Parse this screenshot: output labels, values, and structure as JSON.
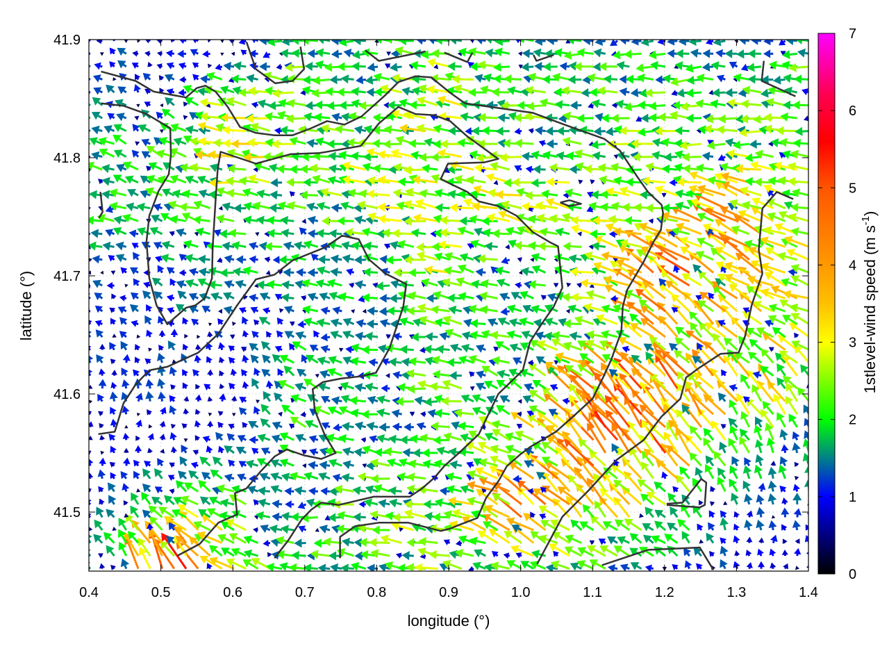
{
  "chart_data": {
    "type": "quiver",
    "title": "",
    "xlabel": "longitude (°)",
    "ylabel": "latitude (°)",
    "colorbar_label_main": "1stlevel-wind speed (m s",
    "colorbar_label_sup": "-1",
    "colorbar_label_end": ")",
    "xlim": [
      0.4,
      1.4
    ],
    "ylim": [
      41.45,
      41.9
    ],
    "clim": [
      0,
      7
    ],
    "xticks": [
      "0.4",
      "0.5",
      "0.6",
      "0.7",
      "0.8",
      "0.9",
      "1.0",
      "1.1",
      "1.2",
      "1.3",
      "1.4"
    ],
    "yticks": [
      "41.5",
      "41.6",
      "41.7",
      "41.8",
      "41.9"
    ],
    "cticks": [
      "0",
      "1",
      "2",
      "3",
      "4",
      "5",
      "6",
      "7"
    ],
    "grid": true,
    "palette": [
      [
        0,
        "#000000"
      ],
      [
        0.5,
        "#000080"
      ],
      [
        1,
        "#0000ff"
      ],
      [
        1.5,
        "#00808a"
      ],
      [
        2,
        "#00ff00"
      ],
      [
        2.5,
        "#80ff00"
      ],
      [
        3,
        "#ffff00"
      ],
      [
        3.5,
        "#ffc000"
      ],
      [
        4,
        "#ff9900"
      ],
      [
        5,
        "#ff5500"
      ],
      [
        5.6,
        "#ff0000"
      ],
      [
        6.2,
        "#ff0050"
      ],
      [
        7,
        "#ff00ff"
      ]
    ],
    "field": {
      "lon": [
        0.4,
        0.5,
        0.6,
        0.7,
        0.8,
        0.9,
        1.0,
        1.1,
        1.2,
        1.3,
        1.4
      ],
      "lat": [
        41.9,
        41.85,
        41.8,
        41.75,
        41.7,
        41.65,
        41.6,
        41.55,
        41.5,
        41.45
      ],
      "speed": [
        [
          1.2,
          0.8,
          0.7,
          1.8,
          1.5,
          2.0,
          1.5,
          1.8,
          1.5,
          1.2,
          1.5
        ],
        [
          1.3,
          1.0,
          2.3,
          2.2,
          1.8,
          2.8,
          2.0,
          2.0,
          2.0,
          2.0,
          2.5
        ],
        [
          1.8,
          1.8,
          2.9,
          2.2,
          2.3,
          2.6,
          2.2,
          2.2,
          2.2,
          2.2,
          2.2
        ],
        [
          1.8,
          1.7,
          1.8,
          1.8,
          2.3,
          2.5,
          2.6,
          2.3,
          2.5,
          3.8,
          2.5
        ],
        [
          1.0,
          1.2,
          1.6,
          1.6,
          1.5,
          2.7,
          1.2,
          2.3,
          4.0,
          3.5,
          2.5
        ],
        [
          1.0,
          1.2,
          0.9,
          1.5,
          1.6,
          1.8,
          2.0,
          1.8,
          3.5,
          3.0,
          2.8
        ],
        [
          1.0,
          1.0,
          0.8,
          1.9,
          1.5,
          2.2,
          1.5,
          4.0,
          4.2,
          3.0,
          2.5
        ],
        [
          0.8,
          0.8,
          1.2,
          1.7,
          1.8,
          1.8,
          2.8,
          4.0,
          4.0,
          2.0,
          1.5
        ],
        [
          0.9,
          2.0,
          2.2,
          1.5,
          2.5,
          2.0,
          3.8,
          3.2,
          2.0,
          1.2,
          1.0
        ],
        [
          1.5,
          5.0,
          3.0,
          1.8,
          2.0,
          2.2,
          2.0,
          1.8,
          1.3,
          1.0,
          0.8
        ]
      ],
      "direction_deg": [
        [
          150,
          140,
          180,
          175,
          180,
          175,
          175,
          180,
          180,
          180,
          180
        ],
        [
          150,
          140,
          170,
          175,
          175,
          170,
          175,
          175,
          180,
          180,
          175
        ],
        [
          165,
          150,
          170,
          172,
          170,
          172,
          175,
          175,
          175,
          175,
          175
        ],
        [
          170,
          160,
          170,
          170,
          170,
          170,
          170,
          170,
          170,
          150,
          165
        ],
        [
          165,
          150,
          175,
          170,
          175,
          170,
          160,
          170,
          140,
          145,
          165
        ],
        [
          130,
          120,
          140,
          150,
          170,
          170,
          160,
          170,
          135,
          140,
          150
        ],
        [
          110,
          100,
          110,
          150,
          170,
          175,
          150,
          130,
          130,
          130,
          130
        ],
        [
          120,
          100,
          150,
          160,
          170,
          170,
          155,
          130,
          130,
          120,
          110
        ],
        [
          125,
          140,
          160,
          175,
          170,
          170,
          145,
          130,
          140,
          110,
          90
        ],
        [
          130,
          110,
          145,
          170,
          170,
          165,
          160,
          165,
          150,
          100,
          90
        ]
      ]
    },
    "coastlines": [
      [
        [
          0.417,
          41.846
        ],
        [
          0.448,
          41.844
        ],
        [
          0.48,
          41.837
        ],
        [
          0.513,
          41.825
        ],
        [
          0.514,
          41.802
        ],
        [
          0.511,
          41.786
        ],
        [
          0.497,
          41.772
        ],
        [
          0.484,
          41.751
        ],
        [
          0.48,
          41.729
        ],
        [
          0.484,
          41.698
        ],
        [
          0.494,
          41.675
        ],
        [
          0.509,
          41.659
        ],
        [
          0.535,
          41.673
        ],
        [
          0.548,
          41.675
        ],
        [
          0.561,
          41.681
        ],
        [
          0.571,
          41.698
        ],
        [
          0.572,
          41.724
        ],
        [
          0.576,
          41.763
        ],
        [
          0.579,
          41.79
        ],
        [
          0.583,
          41.805
        ],
        [
          0.632,
          41.795
        ],
        [
          0.68,
          41.803
        ],
        [
          0.721,
          41.804
        ],
        [
          0.778,
          41.81
        ],
        [
          0.803,
          41.829
        ],
        [
          0.83,
          41.843
        ],
        [
          0.854,
          41.837
        ],
        [
          0.88,
          41.836
        ],
        [
          0.902,
          41.831
        ],
        [
          0.926,
          41.818
        ],
        [
          0.969,
          41.799
        ],
        [
          0.949,
          41.796
        ],
        [
          0.899,
          41.795
        ],
        [
          0.889,
          41.782
        ],
        [
          0.902,
          41.778
        ],
        [
          0.926,
          41.771
        ],
        [
          0.942,
          41.763
        ],
        [
          0.969,
          41.759
        ],
        [
          0.994,
          41.751
        ],
        [
          1.017,
          41.737
        ],
        [
          1.042,
          41.728
        ],
        [
          1.052,
          41.725
        ],
        [
          1.058,
          41.69
        ],
        [
          1.046,
          41.674
        ],
        [
          1.029,
          41.659
        ],
        [
          1.013,
          41.644
        ],
        [
          1.003,
          41.62
        ],
        [
          0.969,
          41.6
        ],
        [
          0.942,
          41.566
        ],
        [
          0.916,
          41.551
        ],
        [
          0.894,
          41.539
        ],
        [
          0.88,
          41.529
        ],
        [
          0.863,
          41.52
        ],
        [
          0.846,
          41.513
        ],
        [
          0.796,
          41.513
        ],
        [
          0.747,
          41.506
        ],
        [
          0.723,
          41.508
        ],
        [
          0.709,
          41.502
        ],
        [
          0.696,
          41.494
        ],
        [
          0.677,
          41.476
        ],
        [
          0.658,
          41.461
        ]
      ],
      [
        [
          0.413,
          41.566
        ],
        [
          0.436,
          41.568
        ],
        [
          0.448,
          41.592
        ],
        [
          0.465,
          41.608
        ],
        [
          0.484,
          41.62
        ],
        [
          0.509,
          41.623
        ],
        [
          0.552,
          41.635
        ],
        [
          0.58,
          41.651
        ],
        [
          0.606,
          41.675
        ],
        [
          0.632,
          41.697
        ],
        [
          0.658,
          41.701
        ],
        [
          0.683,
          41.713
        ],
        [
          0.728,
          41.724
        ],
        [
          0.752,
          41.734
        ],
        [
          0.775,
          41.731
        ],
        [
          0.789,
          41.714
        ],
        [
          0.812,
          41.702
        ],
        [
          0.841,
          41.693
        ],
        [
          0.837,
          41.674
        ],
        [
          0.818,
          41.639
        ],
        [
          0.799,
          41.618
        ],
        [
          0.779,
          41.615
        ],
        [
          0.75,
          41.613
        ],
        [
          0.725,
          41.61
        ],
        [
          0.711,
          41.604
        ],
        [
          0.714,
          41.586
        ],
        [
          0.728,
          41.565
        ],
        [
          0.743,
          41.55
        ],
        [
          0.723,
          41.545
        ],
        [
          0.699,
          41.548
        ],
        [
          0.675,
          41.553
        ],
        [
          0.658,
          41.547
        ],
        [
          0.638,
          41.534
        ],
        [
          0.619,
          41.52
        ],
        [
          0.603,
          41.516
        ],
        [
          0.606,
          41.498
        ],
        [
          0.58,
          41.491
        ],
        [
          0.567,
          41.482
        ],
        [
          0.554,
          41.473
        ],
        [
          0.523,
          41.463
        ]
      ],
      [
        [
          0.417,
          41.873
        ],
        [
          0.465,
          41.865
        ],
        [
          0.49,
          41.856
        ],
        [
          0.535,
          41.851
        ],
        [
          0.55,
          41.859
        ],
        [
          0.562,
          41.861
        ],
        [
          0.576,
          41.856
        ],
        [
          0.593,
          41.843
        ],
        [
          0.61,
          41.826
        ],
        [
          0.632,
          41.821
        ],
        [
          0.658,
          41.819
        ],
        [
          0.683,
          41.819
        ],
        [
          0.709,
          41.825
        ],
        [
          0.731,
          41.831
        ],
        [
          0.755,
          41.828
        ],
        [
          0.779,
          41.835
        ],
        [
          0.812,
          41.853
        ],
        [
          0.83,
          41.864
        ],
        [
          0.854,
          41.869
        ],
        [
          0.876,
          41.868
        ],
        [
          0.902,
          41.855
        ],
        [
          0.923,
          41.846
        ],
        [
          1.017,
          41.838
        ],
        [
          1.061,
          41.828
        ],
        [
          1.116,
          41.816
        ],
        [
          1.138,
          41.806
        ],
        [
          1.162,
          41.784
        ],
        [
          1.177,
          41.771
        ],
        [
          1.196,
          41.76
        ],
        [
          1.198,
          41.753
        ],
        [
          1.195,
          41.739
        ],
        [
          1.184,
          41.728
        ],
        [
          1.171,
          41.712
        ],
        [
          1.148,
          41.688
        ],
        [
          1.142,
          41.674
        ],
        [
          1.14,
          41.653
        ],
        [
          1.126,
          41.629
        ],
        [
          1.113,
          41.612
        ],
        [
          1.1,
          41.596
        ],
        [
          1.075,
          41.582
        ],
        [
          1.049,
          41.568
        ],
        [
          1.013,
          41.555
        ],
        [
          1.0,
          41.549
        ],
        [
          0.981,
          41.539
        ],
        [
          0.969,
          41.526
        ],
        [
          0.952,
          41.512
        ],
        [
          0.94,
          41.495
        ],
        [
          0.914,
          41.489
        ],
        [
          0.902,
          41.486
        ],
        [
          0.889,
          41.484
        ],
        [
          0.844,
          41.491
        ],
        [
          0.803,
          41.491
        ],
        [
          0.77,
          41.488
        ],
        [
          0.749,
          41.479
        ],
        [
          0.749,
          41.461
        ]
      ],
      [
        [
          1.379,
          41.765
        ],
        [
          1.356,
          41.771
        ],
        [
          1.336,
          41.757
        ],
        [
          1.331,
          41.722
        ],
        [
          1.336,
          41.702
        ],
        [
          1.321,
          41.675
        ],
        [
          1.312,
          41.649
        ],
        [
          1.303,
          41.635
        ],
        [
          1.278,
          41.634
        ],
        [
          1.248,
          41.622
        ],
        [
          1.23,
          41.614
        ],
        [
          1.222,
          41.596
        ],
        [
          1.196,
          41.581
        ],
        [
          1.171,
          41.561
        ],
        [
          1.133,
          41.544
        ],
        [
          1.094,
          41.518
        ],
        [
          1.058,
          41.496
        ],
        [
          1.023,
          41.456
        ]
      ],
      [
        [
          0.619,
          41.898
        ],
        [
          0.632,
          41.875
        ],
        [
          0.659,
          41.863
        ],
        [
          0.683,
          41.865
        ],
        [
          0.699,
          41.875
        ],
        [
          0.694,
          41.894
        ]
      ],
      [
        [
          0.784,
          41.891
        ],
        [
          0.803,
          41.882
        ],
        [
          0.868,
          41.89
        ]
      ],
      [
        [
          0.894,
          41.889
        ],
        [
          0.926,
          41.881
        ],
        [
          0.933,
          41.889
        ]
      ],
      [
        [
          1.018,
          41.887
        ],
        [
          1.022,
          41.882
        ],
        [
          1.046,
          41.887
        ]
      ],
      [
        [
          1.338,
          41.882
        ],
        [
          1.335,
          41.865
        ],
        [
          1.382,
          41.852
        ]
      ],
      [
        [
          0.416,
          41.771
        ],
        [
          0.419,
          41.754
        ],
        [
          0.414,
          41.749
        ]
      ],
      [
        [
          1.055,
          41.762
        ],
        [
          1.068,
          41.764
        ],
        [
          1.084,
          41.761
        ],
        [
          1.068,
          41.759
        ],
        [
          1.055,
          41.762
        ]
      ],
      [
        [
          1.203,
          41.507
        ],
        [
          1.225,
          41.508
        ],
        [
          1.251,
          41.528
        ],
        [
          1.258,
          41.525
        ],
        [
          1.256,
          41.506
        ],
        [
          1.249,
          41.504
        ],
        [
          1.203,
          41.506
        ]
      ],
      [
        [
          1.113,
          41.455
        ],
        [
          1.177,
          41.468
        ],
        [
          1.249,
          41.47
        ],
        [
          1.268,
          41.451
        ]
      ]
    ]
  }
}
